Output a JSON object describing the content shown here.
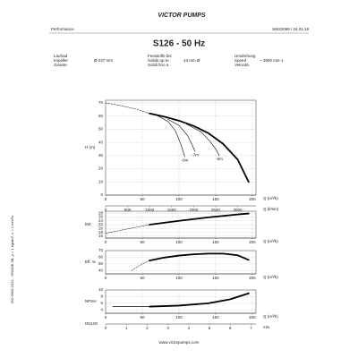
{
  "header": {
    "logo": "VICTOR PUMPS",
    "section": "Performance",
    "doc_ref": "16022099 / 24.01.19",
    "title": "S126 - 50 Hz"
  },
  "specs": [
    {
      "labels": [
        "Laufrad",
        "Impeller",
        "Girante"
      ],
      "value": "Ø 237 mm"
    },
    {
      "labels": [
        "Feststoffe bis",
        "Solids up to",
        "Solidi fino a"
      ],
      "value": "43 mm Ø"
    },
    {
      "labels": [
        "Umdrehung",
        "Speed",
        "Velocità"
      ],
      "value": "~ 2900 min-1"
    }
  ],
  "side_note": "ISO 9906:2012 - GRADE 3B, ρ = 1 kg/dm³, ν = 1 mm²/s",
  "footer": "www.victorpumps.com",
  "chart_data": [
    {
      "type": "line",
      "y_label": "H (m)",
      "x_label": "Q (m³/h)",
      "xlim": [
        0,
        205
      ],
      "xticks": [
        0,
        50,
        100,
        150,
        200
      ],
      "ylim": [
        0,
        72
      ],
      "yticks": [
        0,
        10,
        20,
        30,
        40,
        50,
        60,
        70
      ],
      "grid": true,
      "x2_label": "Q (l/min)",
      "x2lim": [
        0,
        3416.7
      ],
      "x2ticks": [
        0,
        500,
        1000,
        1500,
        2000,
        2500,
        3000
      ],
      "series": [
        {
          "color": "#000000",
          "style": "dashed",
          "x": [
            0,
            20,
            40,
            60
          ],
          "values": [
            70,
            68,
            65.5,
            62
          ]
        },
        {
          "color": "#000000",
          "style": "bold",
          "x": [
            60,
            80,
            100,
            120,
            140,
            160,
            180,
            195
          ],
          "values": [
            62,
            59.5,
            56.5,
            52.5,
            47,
            39,
            27,
            10
          ]
        },
        {
          "name": "-8m",
          "color": "#000000",
          "style": "thin",
          "x": [
            70,
            85,
            95,
            103,
            108
          ],
          "values": [
            60.5,
            56,
            49,
            38,
            29
          ]
        },
        {
          "name": "-7m",
          "color": "#000000",
          "style": "thin",
          "x": [
            85,
            100,
            112,
            118,
            122
          ],
          "values": [
            57.5,
            53,
            45,
            38,
            33
          ]
        },
        {
          "name": "-6m",
          "color": "#000000",
          "style": "thin",
          "x": [
            110,
            130,
            142,
            150,
            155
          ],
          "values": [
            54,
            48,
            41,
            35,
            30
          ]
        }
      ]
    },
    {
      "type": "line",
      "y_label": "kW",
      "x_label": "Q (m³/h)",
      "xlim": [
        0,
        205
      ],
      "xticks": [
        0,
        50,
        100,
        150,
        200
      ],
      "ylim": [
        15,
        29
      ],
      "yticks": [
        16,
        18,
        20,
        22,
        24,
        26,
        28
      ],
      "grid": true,
      "series": [
        {
          "color": "#000000",
          "style": "dashed",
          "x": [
            0,
            20,
            40,
            60
          ],
          "values": [
            17.5,
            19,
            20.5,
            22
          ]
        },
        {
          "color": "#000000",
          "style": "bold",
          "x": [
            60,
            100,
            140,
            180,
            195
          ],
          "values": [
            22,
            24,
            25.8,
            27.3,
            27.8
          ]
        }
      ]
    },
    {
      "type": "line",
      "y_label": "Eff. %",
      "x_label": "Q (m³/h)",
      "xlim": [
        0,
        205
      ],
      "xticks": [
        0,
        50,
        100,
        150,
        200
      ],
      "ylim": [
        35,
        70
      ],
      "yticks": [
        40,
        50,
        60,
        70
      ],
      "grid": true,
      "series": [
        {
          "color": "#000000",
          "style": "dashed",
          "x": [
            35,
            50,
            60
          ],
          "values": [
            40,
            50,
            55
          ]
        },
        {
          "color": "#000000",
          "style": "bold",
          "x": [
            60,
            80,
            100,
            120,
            140,
            160,
            180,
            195
          ],
          "values": [
            55,
            59.5,
            62.5,
            64.5,
            65.5,
            65.5,
            63,
            56
          ]
        }
      ]
    },
    {
      "type": "line",
      "y_label": "NPSH",
      "x_label": "Q (m³/h)",
      "xlim": [
        0,
        205
      ],
      "xticks": [
        0,
        50,
        100,
        150,
        200
      ],
      "ylim": [
        3,
        10
      ],
      "yticks": [
        4,
        6,
        8,
        10
      ],
      "grid": true,
      "series": [
        {
          "color": "#000000",
          "style": "dotted",
          "x": [
            10,
            60
          ],
          "values": [
            5,
            5
          ]
        },
        {
          "color": "#000000",
          "style": "bold",
          "x": [
            60,
            100,
            140,
            170,
            195
          ],
          "values": [
            5,
            5.3,
            6,
            7.2,
            9
          ]
        }
      ]
    },
    {
      "type": "axis",
      "y_label": "DN100",
      "x_label": "m/s",
      "xlim": [
        0,
        7.24
      ],
      "xticks": [
        0,
        1,
        2,
        3,
        4,
        5,
        6,
        7
      ]
    }
  ]
}
